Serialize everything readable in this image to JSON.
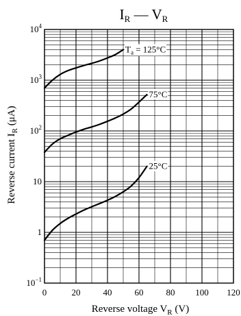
{
  "chart_data": {
    "type": "line",
    "title": "I",
    "title_sub_1": "R",
    "title_mid": " — V",
    "title_sub_2": "R",
    "xlabel": "Reverse voltage  V",
    "xlabel_sub": "R",
    "xlabel_unit": "  (V)",
    "ylabel": "Reverse current  I",
    "ylabel_sub": "R",
    "ylabel_unit": "  (μA)",
    "x_range": [
      0,
      120
    ],
    "y_range": [
      0.1,
      10000
    ],
    "y_scale": "log",
    "grid": true,
    "x_ticks": [
      {
        "value": 0,
        "label": "0"
      },
      {
        "value": 20,
        "label": "20"
      },
      {
        "value": 40,
        "label": "40"
      },
      {
        "value": 60,
        "label": "60"
      },
      {
        "value": 80,
        "label": "80"
      },
      {
        "value": 100,
        "label": "100"
      },
      {
        "value": 120,
        "label": "120"
      }
    ],
    "y_ticks": [
      {
        "value": 0.1,
        "base": "10",
        "exp": "−1"
      },
      {
        "value": 1,
        "base": "1",
        "exp": ""
      },
      {
        "value": 10,
        "base": "10",
        "exp": ""
      },
      {
        "value": 100,
        "base": "10",
        "exp": "2"
      },
      {
        "value": 1000,
        "base": "10",
        "exp": "3"
      },
      {
        "value": 10000,
        "base": "10",
        "exp": "4"
      }
    ],
    "series": [
      {
        "name": "T",
        "name_sub": "a",
        "name_rest": " = 125°C",
        "x": [
          0,
          5,
          10,
          15,
          20,
          25,
          30,
          35,
          40,
          45,
          50
        ],
        "y": [
          700,
          1000,
          1300,
          1550,
          1750,
          1950,
          2150,
          2400,
          2750,
          3200,
          4000
        ]
      },
      {
        "name": "",
        "name_sub": "",
        "name_rest": "75°C",
        "x": [
          0,
          5,
          10,
          15,
          20,
          25,
          30,
          35,
          40,
          45,
          50,
          55,
          60,
          65
        ],
        "y": [
          38,
          55,
          70,
          82,
          95,
          108,
          120,
          135,
          155,
          180,
          215,
          270,
          370,
          520
        ]
      },
      {
        "name": "",
        "name_sub": "",
        "name_rest": "25°C",
        "x": [
          0,
          5,
          10,
          15,
          20,
          25,
          30,
          35,
          40,
          45,
          50,
          55,
          60,
          65
        ],
        "y": [
          0.7,
          1.1,
          1.5,
          1.9,
          2.3,
          2.75,
          3.2,
          3.7,
          4.3,
          5.1,
          6.3,
          8.2,
          12,
          20
        ]
      }
    ]
  }
}
